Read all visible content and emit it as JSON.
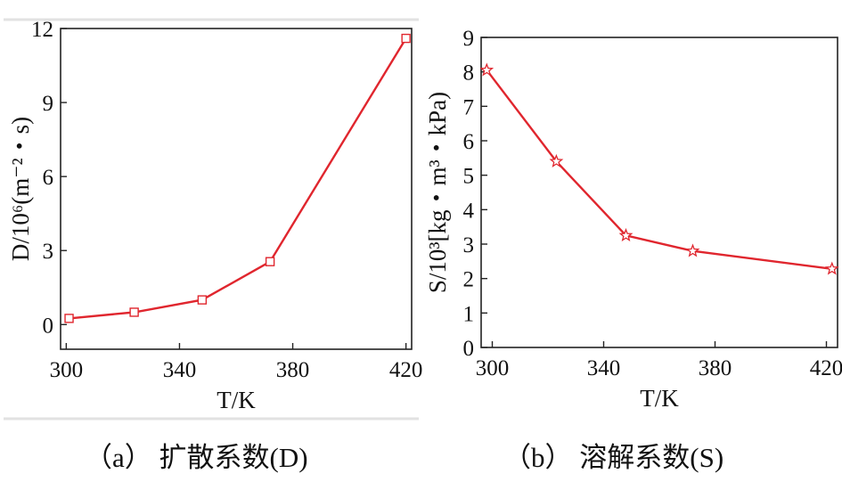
{
  "chart_data": [
    {
      "type": "line",
      "ylabel": "D/10⁶(m⁻²・s)",
      "xlabel": "T/K",
      "x": [
        301,
        324,
        348,
        372,
        420
      ],
      "series": [
        {
          "values": [
            0.25,
            0.5,
            1.0,
            2.55,
            11.6
          ]
        }
      ],
      "xticks": [
        "300",
        "340",
        "380",
        "420"
      ],
      "yticks": [
        "0",
        "3",
        "6",
        "9",
        "12"
      ],
      "xlim": [
        298,
        422
      ],
      "ylim": [
        -1,
        12
      ],
      "marker": "square",
      "color": "#e0262e",
      "caption": "（a） 扩散系数(D)",
      "grid": false
    },
    {
      "type": "line",
      "ylabel": "S/10³[kg・m³・kPa)",
      "xlabel": "T/K",
      "x": [
        298,
        323,
        348,
        372,
        422
      ],
      "series": [
        {
          "values": [
            8.05,
            5.4,
            3.25,
            2.8,
            2.28
          ]
        }
      ],
      "xticks": [
        "300",
        "340",
        "380",
        "420"
      ],
      "yticks": [
        "0",
        "1",
        "2",
        "3",
        "4",
        "5",
        "6",
        "7",
        "8",
        "9"
      ],
      "xlim": [
        296,
        424
      ],
      "ylim": [
        0,
        9
      ],
      "marker": "star",
      "color": "#e0262e",
      "caption": "（b） 溶解系数(S)",
      "grid": false
    }
  ]
}
